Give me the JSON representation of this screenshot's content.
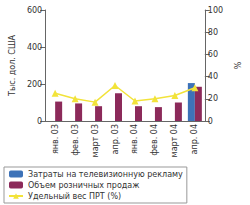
{
  "chart_data": {
    "type": "bar",
    "categories": [
      "янв. 03",
      "фев. 03",
      "март 03",
      "апр. 03",
      "янв. 04",
      "фев. 04",
      "март 04",
      "апр. 04"
    ],
    "y_label": "Тыс. дол. США",
    "y2_label": "%",
    "ylim": [
      0,
      600
    ],
    "yticks": [
      0,
      200,
      400,
      600
    ],
    "y2lim": [
      0,
      100
    ],
    "y2ticks": [
      0,
      20,
      40,
      60,
      80,
      100
    ],
    "grid": false,
    "legend": "bottom",
    "series": [
      {
        "name": "Затраты на телевизионную рекламу",
        "type": "bar",
        "color": "#3d72b8",
        "values": [
          null,
          null,
          null,
          null,
          null,
          null,
          null,
          205
        ]
      },
      {
        "name": "Объем розничных продаж",
        "type": "bar",
        "color": "#8c2a5a",
        "values": [
          105,
          95,
          80,
          150,
          80,
          75,
          100,
          185
        ]
      },
      {
        "name": "Удельный вес ПРТ (%)",
        "type": "line",
        "axis": "y2",
        "color": "#f2e33a",
        "marker": "triangle",
        "values": [
          25,
          20,
          17,
          32,
          18,
          20,
          23,
          30
        ]
      }
    ]
  }
}
